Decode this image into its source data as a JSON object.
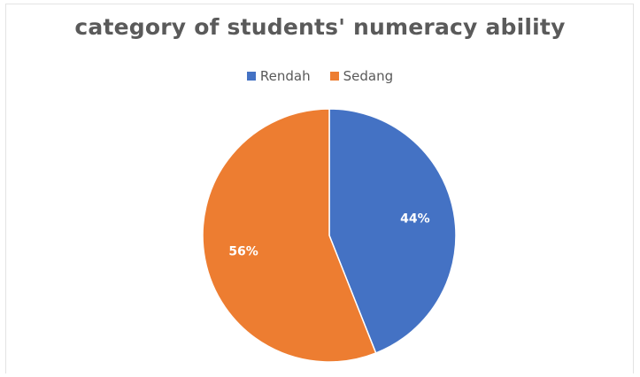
{
  "chart_data": {
    "type": "pie",
    "title": "category of students' numeracy ability",
    "legend_position": "top",
    "slices": [
      {
        "name": "Rendah",
        "value": 44,
        "label": "44%",
        "color": "#4472c4"
      },
      {
        "name": "Sedang",
        "value": 56,
        "label": "56%",
        "color": "#ed7d31"
      }
    ]
  }
}
